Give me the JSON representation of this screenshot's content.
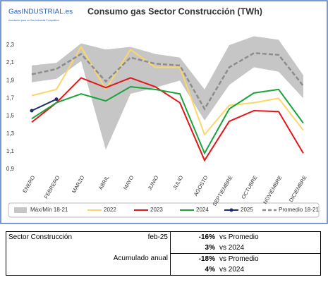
{
  "logo": {
    "text": "GasINDUSTRIAL.es",
    "tagline": "Asociación para un Gas Industrial Competitivo"
  },
  "chart_data": {
    "type": "line",
    "title": "Consumo gas Sector Construcción (TWh)",
    "categories": [
      "ENERO",
      "FEBRERO",
      "MARZO",
      "ABRIL",
      "MAYO",
      "JUNIO",
      "JULIO",
      "AGOSTO",
      "SEPTIEMBRE",
      "OCTUBRE",
      "NOVIEMBRE",
      "DICIEMBRE"
    ],
    "ylim": [
      0.9,
      2.4
    ],
    "yticks": [
      {
        "value": 0.9,
        "label": "0,9"
      },
      {
        "value": 1.1,
        "label": "1,1"
      },
      {
        "value": 1.3,
        "label": "1,3"
      },
      {
        "value": 1.5,
        "label": "1,5"
      },
      {
        "value": 1.7,
        "label": "1,7"
      },
      {
        "value": 1.9,
        "label": "1,9"
      },
      {
        "value": 2.1,
        "label": "2,1"
      },
      {
        "value": 2.3,
        "label": "2,3"
      }
    ],
    "grid": false,
    "series": [
      {
        "name": "Máx/Mín 18-21",
        "kind": "band",
        "color": "#c6c6c6",
        "max": [
          2.07,
          2.1,
          2.32,
          2.25,
          2.28,
          2.2,
          2.16,
          1.8,
          2.3,
          2.4,
          2.36,
          1.96
        ],
        "min": [
          1.88,
          1.92,
          2.12,
          1.12,
          1.75,
          1.82,
          1.9,
          1.45,
          1.85,
          2.05,
          2.0,
          1.7
        ]
      },
      {
        "name": "2022",
        "color": "#fcd666",
        "values": [
          1.73,
          1.8,
          2.28,
          1.8,
          2.25,
          2.05,
          2.05,
          1.29,
          1.62,
          1.65,
          1.7,
          1.34
        ]
      },
      {
        "name": "2023",
        "color": "#e3161b",
        "values": [
          1.43,
          1.65,
          1.93,
          1.82,
          1.93,
          1.83,
          1.65,
          1.0,
          1.44,
          1.56,
          1.55,
          1.08
        ]
      },
      {
        "name": "2024",
        "color": "#1aa33a",
        "values": [
          1.47,
          1.65,
          1.75,
          1.67,
          1.83,
          1.8,
          1.75,
          1.08,
          1.58,
          1.76,
          1.8,
          1.42
        ]
      },
      {
        "name": "2025",
        "color": "#1f2d6b",
        "markers": true,
        "values": [
          1.56,
          1.69,
          null,
          null,
          null,
          null,
          null,
          null,
          null,
          null,
          null,
          null
        ]
      },
      {
        "name": "Promedio 18-21",
        "color": "#8c8c8c",
        "dashed": true,
        "values": [
          1.97,
          2.03,
          2.2,
          1.89,
          2.16,
          2.09,
          2.07,
          1.58,
          2.05,
          2.21,
          2.19,
          1.84
        ]
      }
    ]
  },
  "table": {
    "rows": [
      {
        "label": "Sector Construcción",
        "period": "feb-25",
        "items": [
          {
            "value": "-16%",
            "text": "vs Promedio"
          },
          {
            "value": "3%",
            "text": "vs 2024"
          }
        ]
      },
      {
        "label": "Acumulado anual",
        "items": [
          {
            "value": "-18%",
            "text": "vs Promedio"
          },
          {
            "value": "4%",
            "text": "vs 2024"
          }
        ]
      }
    ]
  }
}
